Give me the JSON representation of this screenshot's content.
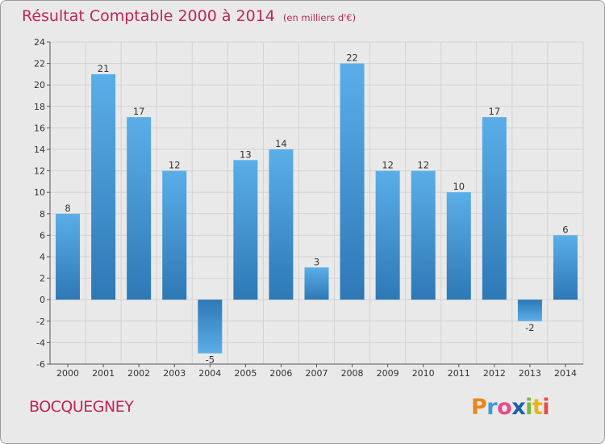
{
  "title": "Résultat Comptable 2000 à 2014",
  "subtitle": "(en milliers d'€)",
  "commune": "BOCQUEGNEY",
  "logo": [
    "P",
    "r",
    "o",
    "x",
    "i",
    "t",
    "i"
  ],
  "logo_colors": [
    "#e8891d",
    "#3c9bd6",
    "#e84a8c",
    "#1f5fa8",
    "#7ab83c",
    "#e8b41d",
    "#e84a4a"
  ],
  "chart_data": {
    "type": "bar",
    "title": "Résultat Comptable 2000 à 2014",
    "subtitle": "(en milliers d'€)",
    "xlabel": "",
    "ylabel": "",
    "categories": [
      "2000",
      "2001",
      "2002",
      "2003",
      "2004",
      "2005",
      "2006",
      "2007",
      "2008",
      "2009",
      "2010",
      "2011",
      "2012",
      "2013",
      "2014"
    ],
    "values": [
      8,
      21,
      17,
      12,
      -5,
      13,
      14,
      3,
      22,
      12,
      12,
      10,
      17,
      -2,
      6
    ],
    "ylim": [
      -6,
      24
    ],
    "yticks": [
      -6,
      -4,
      -2,
      0,
      2,
      4,
      6,
      8,
      10,
      12,
      14,
      16,
      18,
      20,
      22,
      24
    ],
    "grid": true,
    "bar_color_top": "#5aaee8",
    "bar_color_bottom": "#2e78b6"
  }
}
